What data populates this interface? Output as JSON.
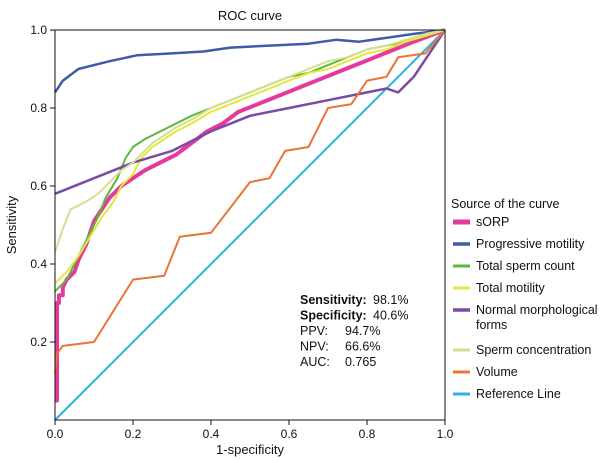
{
  "chart_data": {
    "type": "line",
    "title": "ROC curve",
    "xlabel": "1-specificity",
    "ylabel": "Sensitivity",
    "xlim": [
      0,
      1
    ],
    "ylim": [
      0,
      1
    ],
    "x_ticks": [
      "0.0",
      "0.2",
      "0.4",
      "0.6",
      "0.8",
      "1.0"
    ],
    "y_ticks": [
      "0.2",
      "0.4",
      "0.6",
      "0.8",
      "1.0"
    ],
    "legend_title": "Source of the curve",
    "legend_position": "right",
    "series": [
      {
        "name": "sORP",
        "color": "#e6399b",
        "width": 4,
        "points": [
          [
            0.0,
            0.05
          ],
          [
            0.005,
            0.05
          ],
          [
            0.005,
            0.3
          ],
          [
            0.01,
            0.3
          ],
          [
            0.01,
            0.32
          ],
          [
            0.02,
            0.32
          ],
          [
            0.02,
            0.34
          ],
          [
            0.03,
            0.36
          ],
          [
            0.05,
            0.38
          ],
          [
            0.06,
            0.41
          ],
          [
            0.07,
            0.43
          ],
          [
            0.08,
            0.45
          ],
          [
            0.09,
            0.48
          ],
          [
            0.1,
            0.51
          ],
          [
            0.12,
            0.54
          ],
          [
            0.14,
            0.57
          ],
          [
            0.17,
            0.6
          ],
          [
            0.2,
            0.62
          ],
          [
            0.23,
            0.64
          ],
          [
            0.27,
            0.66
          ],
          [
            0.31,
            0.68
          ],
          [
            0.35,
            0.71
          ],
          [
            0.39,
            0.74
          ],
          [
            0.43,
            0.76
          ],
          [
            0.47,
            0.79
          ],
          [
            0.52,
            0.81
          ],
          [
            0.57,
            0.83
          ],
          [
            0.62,
            0.85
          ],
          [
            0.67,
            0.87
          ],
          [
            0.72,
            0.89
          ],
          [
            0.77,
            0.91
          ],
          [
            0.82,
            0.93
          ],
          [
            0.87,
            0.95
          ],
          [
            0.92,
            0.97
          ],
          [
            0.96,
            0.985
          ],
          [
            1.0,
            1.0
          ]
        ]
      },
      {
        "name": "Progressive motility",
        "color": "#3d5ba8",
        "width": 2.5,
        "points": [
          [
            0.0,
            0.84
          ],
          [
            0.02,
            0.87
          ],
          [
            0.06,
            0.9
          ],
          [
            0.14,
            0.92
          ],
          [
            0.21,
            0.935
          ],
          [
            0.3,
            0.94
          ],
          [
            0.38,
            0.945
          ],
          [
            0.45,
            0.955
          ],
          [
            0.55,
            0.96
          ],
          [
            0.65,
            0.965
          ],
          [
            0.72,
            0.975
          ],
          [
            0.78,
            0.97
          ],
          [
            0.85,
            0.98
          ],
          [
            0.92,
            0.99
          ],
          [
            1.0,
            1.0
          ]
        ]
      },
      {
        "name": "Total sperm count",
        "color": "#5cb83a",
        "width": 2,
        "points": [
          [
            0.0,
            0.33
          ],
          [
            0.01,
            0.34
          ],
          [
            0.03,
            0.36
          ],
          [
            0.05,
            0.4
          ],
          [
            0.07,
            0.44
          ],
          [
            0.09,
            0.48
          ],
          [
            0.11,
            0.52
          ],
          [
            0.13,
            0.57
          ],
          [
            0.16,
            0.62
          ],
          [
            0.18,
            0.67
          ],
          [
            0.2,
            0.7
          ],
          [
            0.23,
            0.72
          ],
          [
            0.27,
            0.74
          ],
          [
            0.31,
            0.76
          ],
          [
            0.35,
            0.78
          ],
          [
            0.4,
            0.8
          ],
          [
            0.45,
            0.82
          ],
          [
            0.5,
            0.84
          ],
          [
            0.55,
            0.86
          ],
          [
            0.6,
            0.88
          ],
          [
            0.65,
            0.89
          ],
          [
            0.7,
            0.91
          ],
          [
            0.75,
            0.93
          ],
          [
            0.8,
            0.95
          ],
          [
            0.85,
            0.96
          ],
          [
            0.9,
            0.97
          ],
          [
            0.95,
            0.985
          ],
          [
            1.0,
            1.0
          ]
        ]
      },
      {
        "name": "Total motility",
        "color": "#e7e63a",
        "width": 2,
        "points": [
          [
            0.0,
            0.35
          ],
          [
            0.03,
            0.38
          ],
          [
            0.06,
            0.42
          ],
          [
            0.09,
            0.47
          ],
          [
            0.12,
            0.52
          ],
          [
            0.15,
            0.56
          ],
          [
            0.17,
            0.6
          ],
          [
            0.2,
            0.63
          ],
          [
            0.22,
            0.67
          ],
          [
            0.25,
            0.7
          ],
          [
            0.28,
            0.72
          ],
          [
            0.31,
            0.74
          ],
          [
            0.35,
            0.76
          ],
          [
            0.4,
            0.79
          ],
          [
            0.45,
            0.81
          ],
          [
            0.5,
            0.83
          ],
          [
            0.55,
            0.85
          ],
          [
            0.6,
            0.87
          ],
          [
            0.65,
            0.89
          ],
          [
            0.7,
            0.9
          ],
          [
            0.75,
            0.92
          ],
          [
            0.8,
            0.94
          ],
          [
            0.85,
            0.95
          ],
          [
            0.9,
            0.97
          ],
          [
            0.95,
            0.985
          ],
          [
            1.0,
            1.0
          ]
        ]
      },
      {
        "name": "Normal morphological forms",
        "color": "#7b4aa5",
        "width": 2.5,
        "points": [
          [
            0.0,
            0.58
          ],
          [
            0.1,
            0.62
          ],
          [
            0.2,
            0.66
          ],
          [
            0.3,
            0.69
          ],
          [
            0.4,
            0.74
          ],
          [
            0.5,
            0.78
          ],
          [
            0.6,
            0.8
          ],
          [
            0.7,
            0.82
          ],
          [
            0.8,
            0.84
          ],
          [
            0.85,
            0.85
          ],
          [
            0.88,
            0.84
          ],
          [
            0.92,
            0.88
          ],
          [
            0.96,
            0.94
          ],
          [
            1.0,
            1.0
          ]
        ]
      },
      {
        "name": "Sperm concentration",
        "color": "#d6df8e",
        "width": 2,
        "points": [
          [
            0.0,
            0.43
          ],
          [
            0.02,
            0.49
          ],
          [
            0.04,
            0.54
          ],
          [
            0.08,
            0.56
          ],
          [
            0.11,
            0.58
          ],
          [
            0.13,
            0.6
          ],
          [
            0.15,
            0.62
          ],
          [
            0.17,
            0.64
          ],
          [
            0.2,
            0.66
          ],
          [
            0.22,
            0.68
          ],
          [
            0.25,
            0.71
          ],
          [
            0.28,
            0.73
          ],
          [
            0.31,
            0.75
          ],
          [
            0.35,
            0.77
          ],
          [
            0.4,
            0.8
          ],
          [
            0.45,
            0.82
          ],
          [
            0.5,
            0.84
          ],
          [
            0.55,
            0.86
          ],
          [
            0.6,
            0.88
          ],
          [
            0.65,
            0.9
          ],
          [
            0.7,
            0.92
          ],
          [
            0.75,
            0.93
          ],
          [
            0.8,
            0.95
          ],
          [
            0.85,
            0.96
          ],
          [
            0.9,
            0.975
          ],
          [
            0.95,
            0.99
          ],
          [
            1.0,
            1.0
          ]
        ]
      },
      {
        "name": "Volume",
        "color": "#ea7434",
        "width": 2,
        "points": [
          [
            0.0,
            0.12
          ],
          [
            0.005,
            0.17
          ],
          [
            0.02,
            0.19
          ],
          [
            0.1,
            0.2
          ],
          [
            0.2,
            0.36
          ],
          [
            0.28,
            0.37
          ],
          [
            0.32,
            0.47
          ],
          [
            0.4,
            0.48
          ],
          [
            0.5,
            0.61
          ],
          [
            0.55,
            0.62
          ],
          [
            0.59,
            0.69
          ],
          [
            0.65,
            0.7
          ],
          [
            0.7,
            0.8
          ],
          [
            0.76,
            0.81
          ],
          [
            0.8,
            0.87
          ],
          [
            0.85,
            0.88
          ],
          [
            0.88,
            0.93
          ],
          [
            0.95,
            0.94
          ],
          [
            1.0,
            1.0
          ]
        ]
      },
      {
        "name": "Reference Line",
        "color": "#2eb1e3",
        "width": 2,
        "points": [
          [
            0.0,
            0.0
          ],
          [
            1.0,
            1.0
          ]
        ]
      }
    ],
    "stats": [
      {
        "label": "Sensitivity:",
        "value": "98.1%",
        "bold": true
      },
      {
        "label": "Specificity:",
        "value": "40.6%",
        "bold": true
      },
      {
        "label": "PPV:",
        "value": "94.7%",
        "bold": false
      },
      {
        "label": "NPV:",
        "value": "66.6%",
        "bold": false
      },
      {
        "label": "AUC:",
        "value": "0.765",
        "bold": false
      }
    ]
  }
}
